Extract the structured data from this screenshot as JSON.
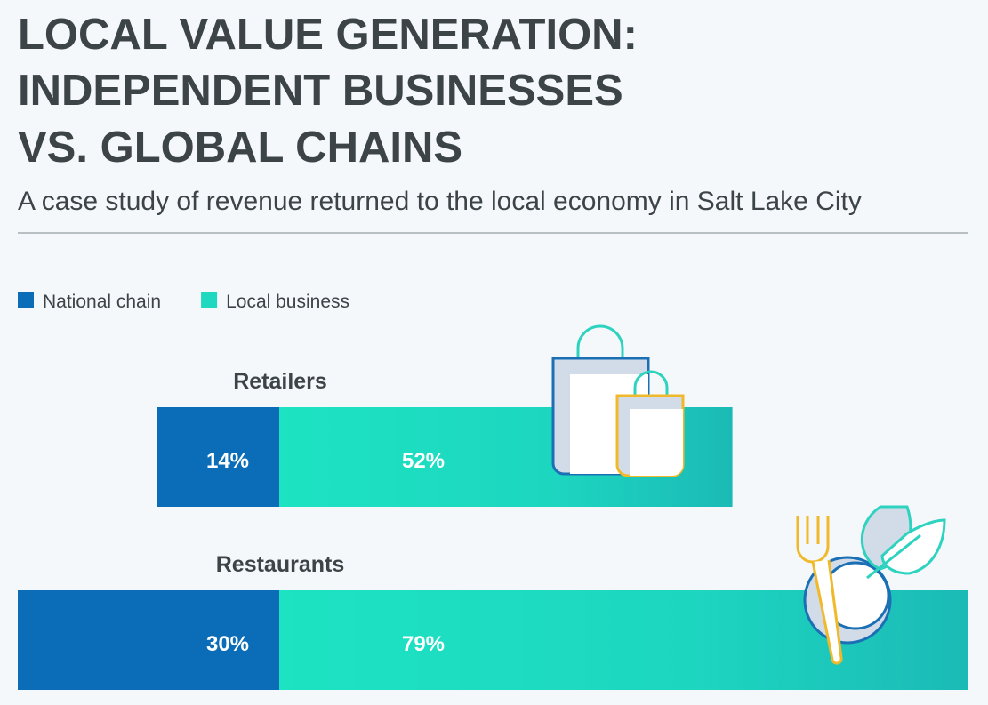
{
  "chart_data": {
    "type": "diverging-bar",
    "title": [
      "LOCAL VALUE GENERATION:",
      "INDEPENDENT BUSINESSES",
      "VS. GLOBAL CHAINS"
    ],
    "subtitle": "A case study of revenue returned to the local economy in Salt Lake City",
    "categories": [
      "Retailers",
      "Restaurants"
    ],
    "series": [
      {
        "name": "National chain",
        "color": "#0b6db7",
        "values": [
          14,
          30
        ],
        "value_labels": [
          "14%",
          "30%"
        ]
      },
      {
        "name": "Local business",
        "color": "#1ed8c0",
        "values": [
          52,
          79
        ],
        "value_labels": [
          "52%",
          "79%"
        ]
      }
    ]
  }
}
